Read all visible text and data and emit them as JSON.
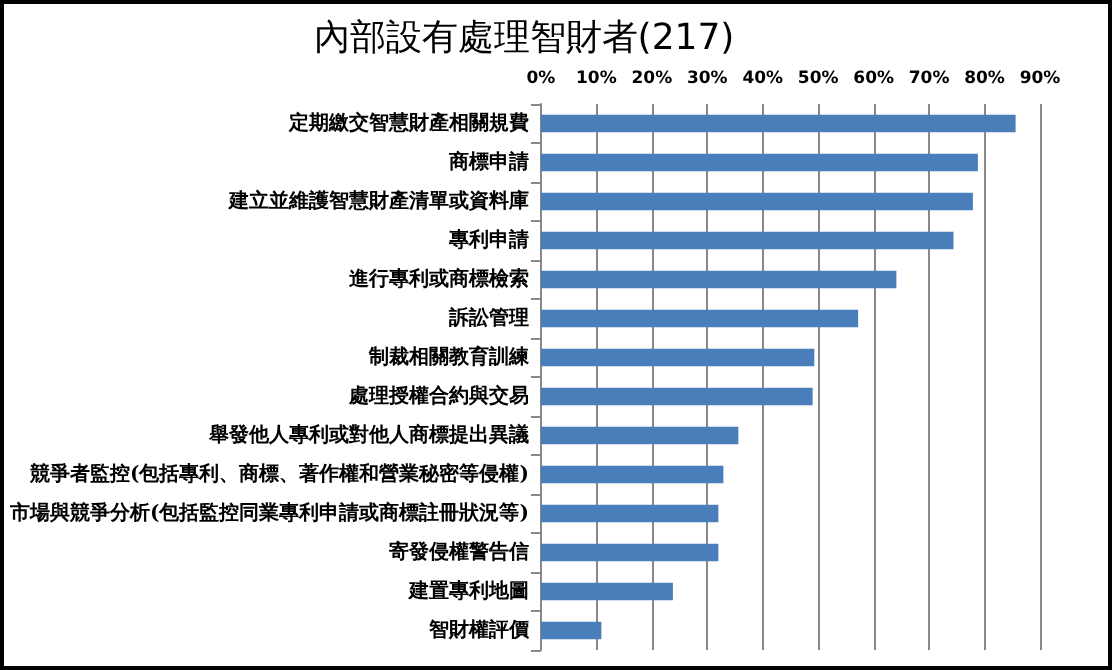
{
  "chart_data": {
    "type": "bar",
    "orientation": "horizontal",
    "title": "內部設有處理智財者(217)",
    "categories": [
      "定期繳交智慧財產相關規費",
      "商標申請",
      "建立並維護智慧財產清單或資料庫",
      "專利申請",
      "進行專利或商標檢索",
      "訴訟管理",
      "制裁相關教育訓練",
      "處理授權合約與交易",
      "舉發他人專利或對他人商標提出異議",
      "競爭者監控(包括專利、商標、著作權和營業秘密等侵權)",
      "市場與競爭分析(包括監控同業專利申請或商標註冊狀況等)",
      "寄發侵權警告信",
      "建置專利地圖",
      "智財權評價"
    ],
    "values": [
      85.6,
      78.8,
      77.9,
      74.4,
      64.1,
      57.2,
      49.3,
      49.0,
      35.6,
      32.9,
      32.0,
      32.0,
      23.8,
      10.9
    ],
    "color": "#4a7ebb",
    "xlim": [
      0,
      90
    ],
    "xticks": [
      {
        "value": 0,
        "label": "0%"
      },
      {
        "value": 10,
        "label": "10%"
      },
      {
        "value": 20,
        "label": "20%"
      },
      {
        "value": 30,
        "label": "30%"
      },
      {
        "value": 40,
        "label": "40%"
      },
      {
        "value": 50,
        "label": "50%"
      },
      {
        "value": 60,
        "label": "60%"
      },
      {
        "value": 70,
        "label": "70%"
      },
      {
        "value": 80,
        "label": "80%"
      },
      {
        "value": 90,
        "label": "90%"
      }
    ],
    "grid": "x"
  }
}
